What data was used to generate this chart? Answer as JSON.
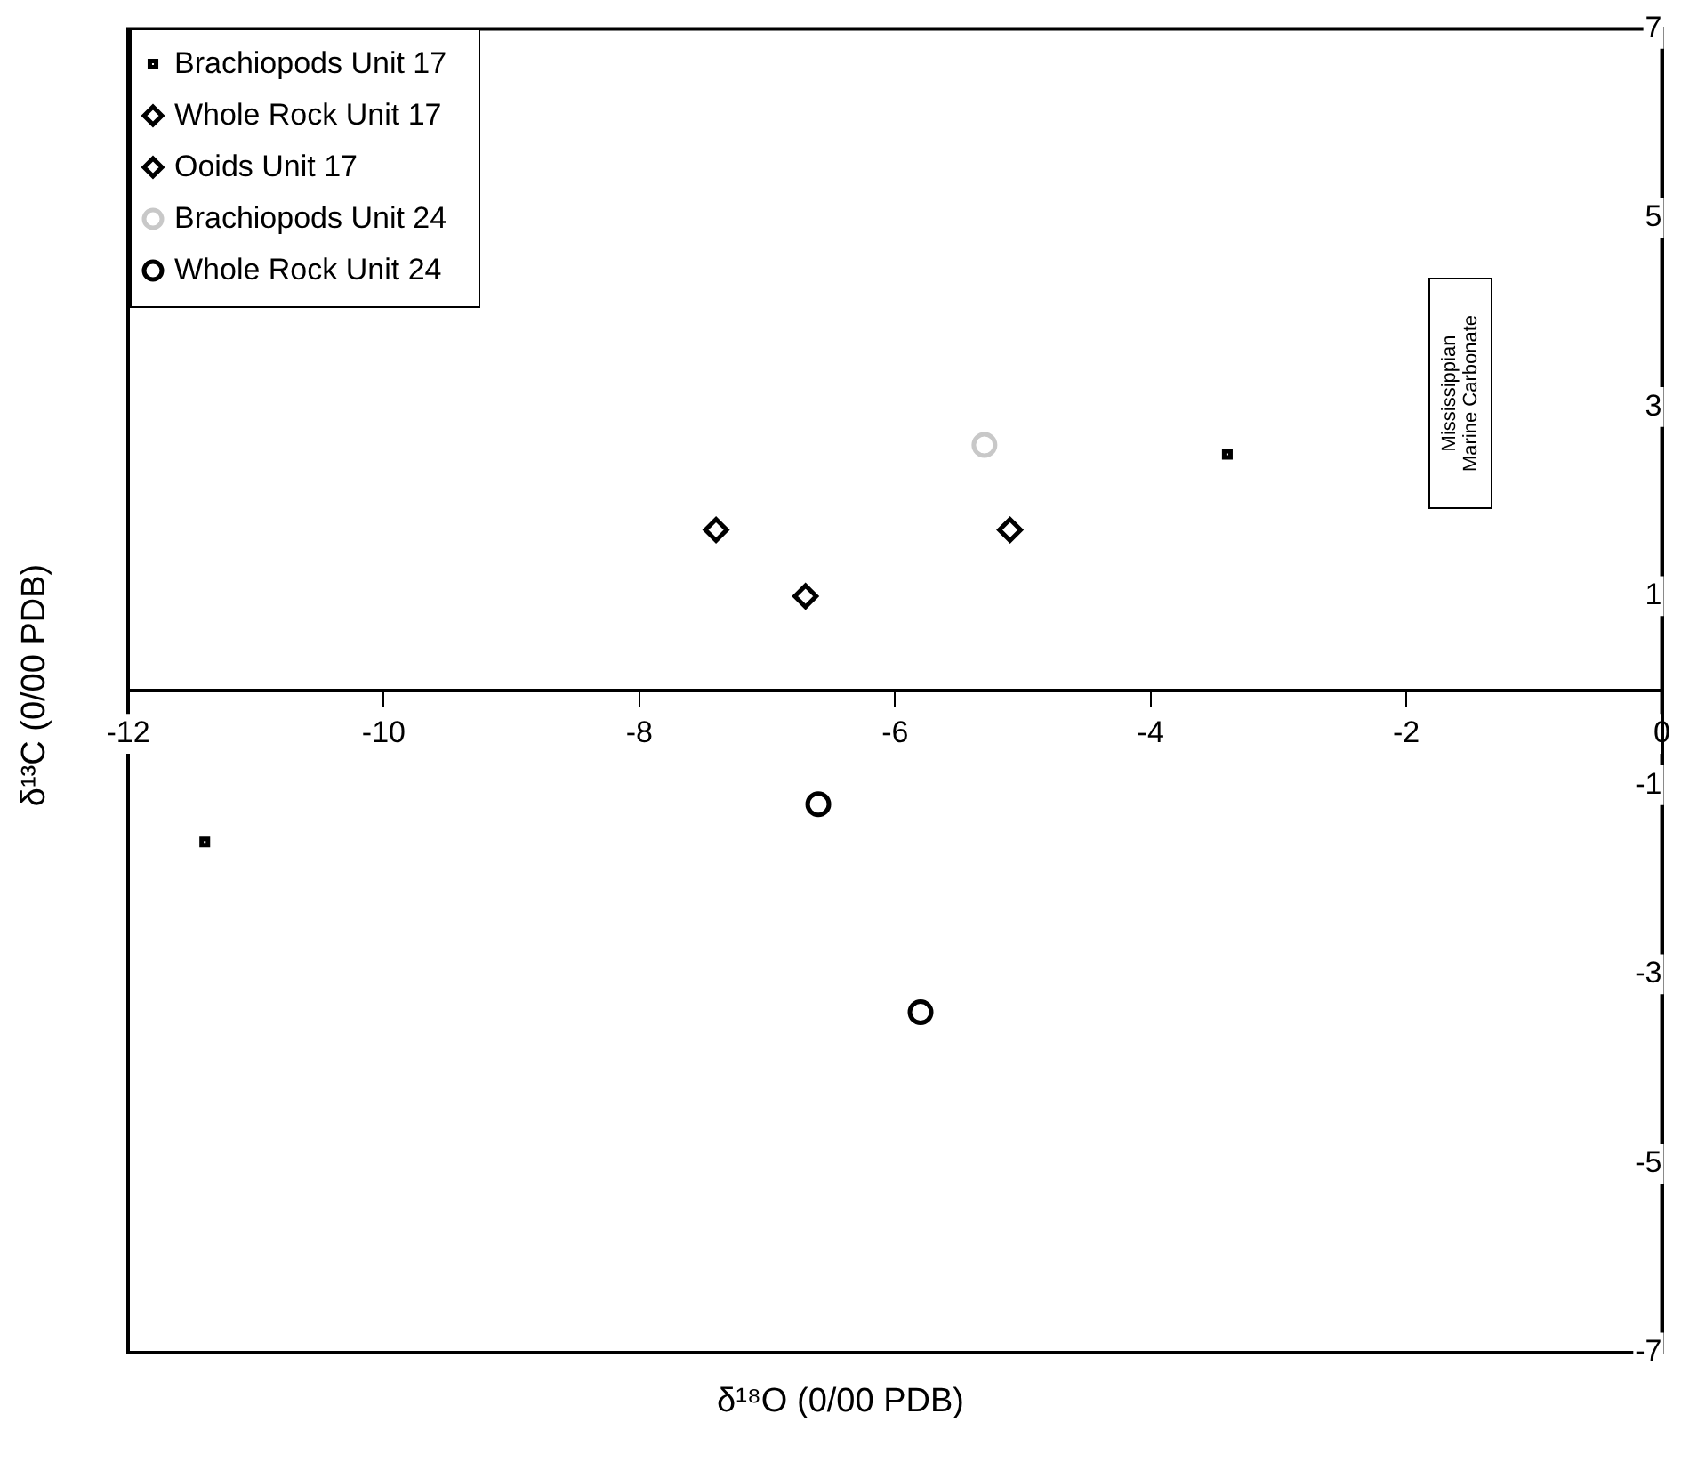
{
  "chart_data": {
    "type": "scatter",
    "xlabel": "δ¹⁸O (0/00 PDB)",
    "ylabel": "δ¹³C (0/00 PDB)",
    "xlim": [
      -12,
      0
    ],
    "xticks": [
      -12,
      -10,
      -8,
      -6,
      -4,
      -2,
      0
    ],
    "ylim": [
      -7,
      7
    ],
    "yticks": [
      -7,
      -5,
      -3,
      -1,
      1,
      3,
      5,
      7
    ],
    "grid": false,
    "legend": "top left",
    "annotations": [
      "Mississippian Marine Carbonate"
    ],
    "series": [
      {
        "name": "Brachiopods Unit 17",
        "color": "#000000",
        "marker": "square",
        "x": [
          -11.4,
          -3.4
        ],
        "values": [
          -1.6,
          2.5
        ]
      },
      {
        "name": "Whole Rock Unit 17",
        "color": "#000000",
        "marker": "diamond",
        "x": [
          -7.4,
          -6.7
        ],
        "values": [
          1.7,
          1.0
        ]
      },
      {
        "name": "Ooids Unit 17",
        "color": "#000000",
        "marker": "diamond",
        "x": [
          -5.1
        ],
        "values": [
          1.7
        ]
      },
      {
        "name": "Brachiopods Unit 24",
        "color": "#c8c8c8",
        "marker": "circle",
        "x": [
          -5.3
        ],
        "values": [
          2.6
        ]
      },
      {
        "name": "Whole Rock Unit 24",
        "color": "#000000",
        "marker": "circle",
        "x": [
          -6.6,
          -5.8
        ],
        "values": [
          -1.2,
          -3.4
        ]
      }
    ]
  }
}
